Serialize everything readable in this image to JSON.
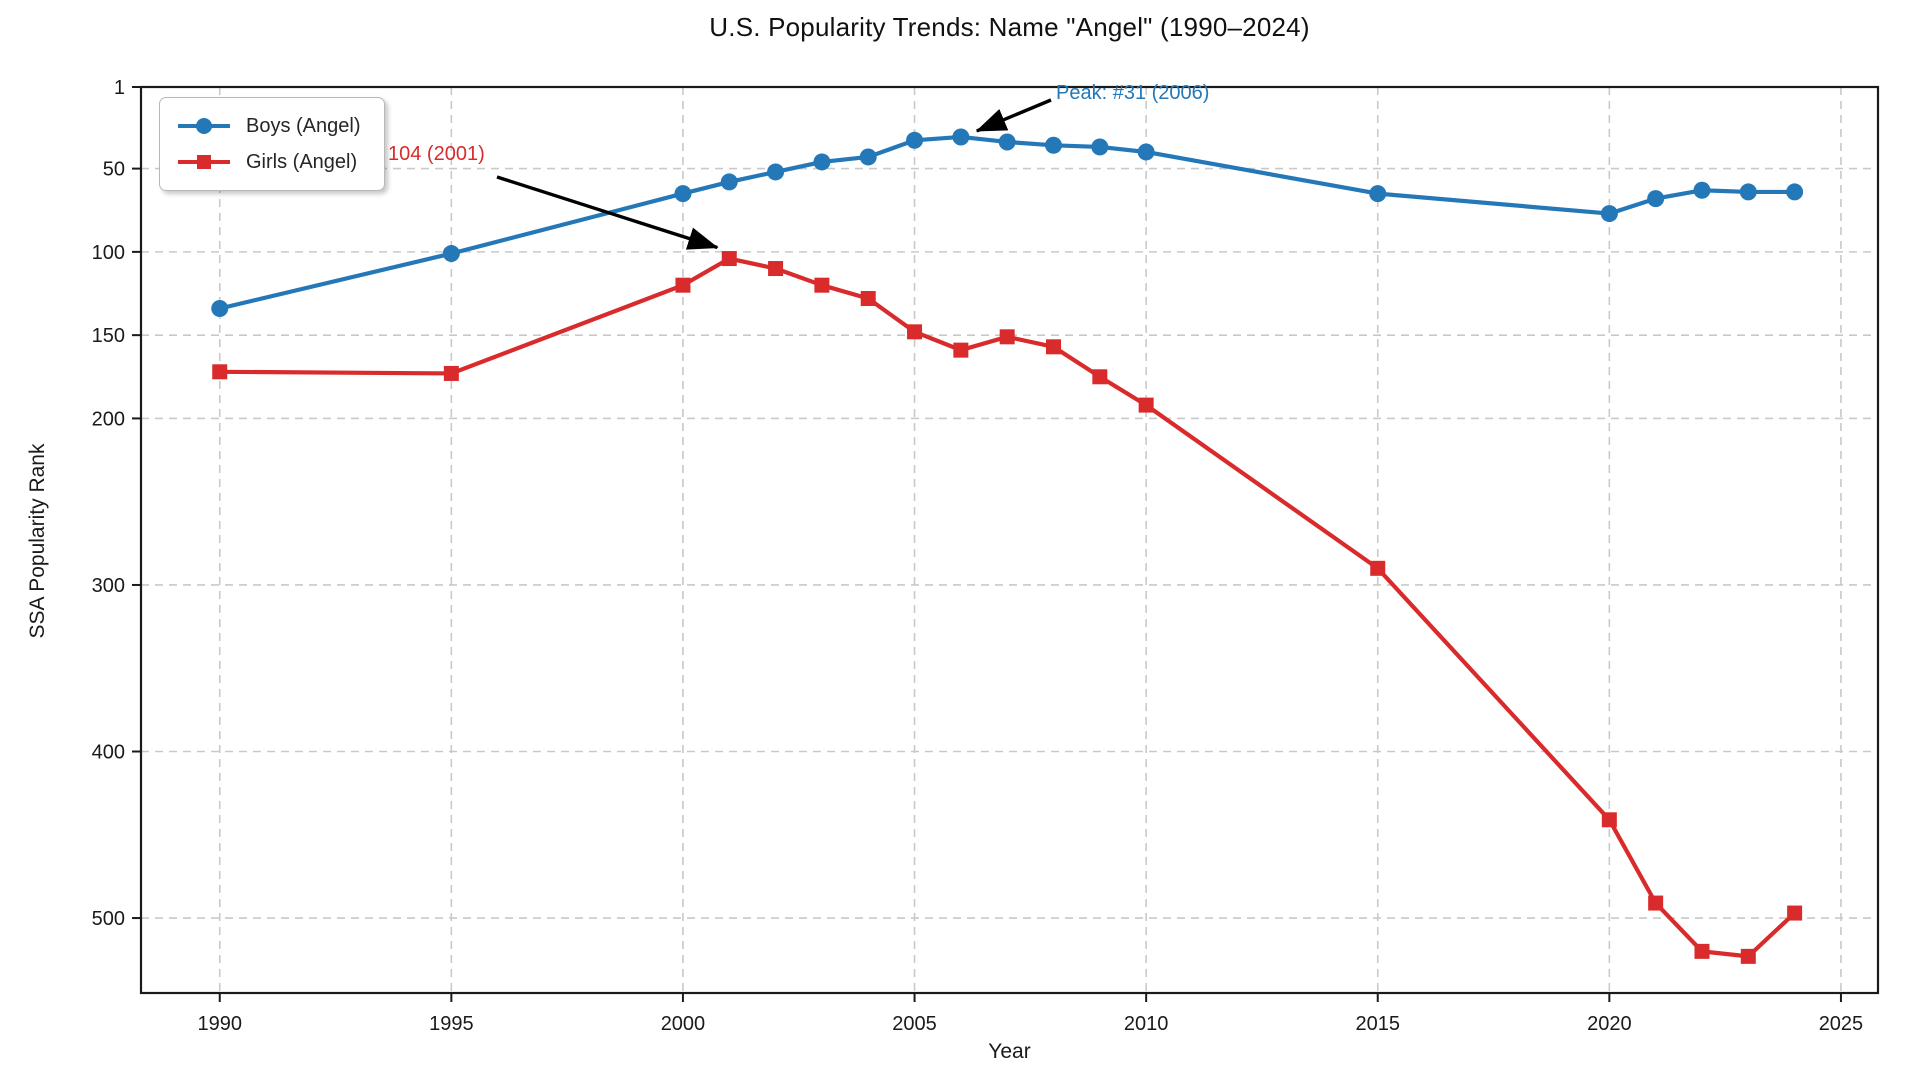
{
  "chart_data": {
    "type": "line",
    "title": "U.S. Popularity Trends: Name \"Angel\" (1990–2024)",
    "xlabel": "Year",
    "ylabel": "SSA Popularity Rank",
    "x_ticks": [
      1990,
      1995,
      2000,
      2005,
      2010,
      2015,
      2020,
      2025
    ],
    "y_ticks": [
      1,
      50,
      100,
      150,
      200,
      300,
      400,
      500
    ],
    "xlim": [
      1988.3,
      2025.8
    ],
    "ylim": [
      1,
      545
    ],
    "y_axis_inverted": true,
    "grid": true,
    "grid_style": "dashed",
    "legend_position": "upper left",
    "axis_color": "#1a1a1a",
    "grid_color": "#c9c9c9",
    "series": [
      {
        "name": "Boys (Angel)",
        "color": "#2478b8",
        "marker": "circle",
        "years": [
          1990,
          1995,
          2000,
          2001,
          2002,
          2003,
          2004,
          2005,
          2006,
          2007,
          2008,
          2009,
          2010,
          2015,
          2020,
          2021,
          2022,
          2023,
          2024
        ],
        "ranks": [
          134,
          101,
          65,
          58,
          52,
          46,
          43,
          33,
          31,
          34,
          36,
          37,
          40,
          65,
          77,
          68,
          63,
          64,
          64
        ]
      },
      {
        "name": "Girls (Angel)",
        "color": "#d92b2b",
        "marker": "square",
        "years": [
          1990,
          1995,
          2000,
          2001,
          2002,
          2003,
          2004,
          2005,
          2006,
          2007,
          2008,
          2009,
          2010,
          2015,
          2020,
          2021,
          2022,
          2023,
          2024
        ],
        "ranks": [
          172,
          173,
          120,
          104,
          110,
          120,
          128,
          148,
          159,
          151,
          157,
          175,
          192,
          290,
          441,
          491,
          520,
          523,
          497
        ]
      }
    ],
    "annotations": [
      {
        "text": "Peak: #31 (2006)",
        "color": "#2478b8",
        "target_year": 2006,
        "target_rank": 31
      },
      {
        "text": "104 (2001)",
        "color": "#d92b2b",
        "target_year": 2001,
        "target_rank": 104
      }
    ]
  }
}
